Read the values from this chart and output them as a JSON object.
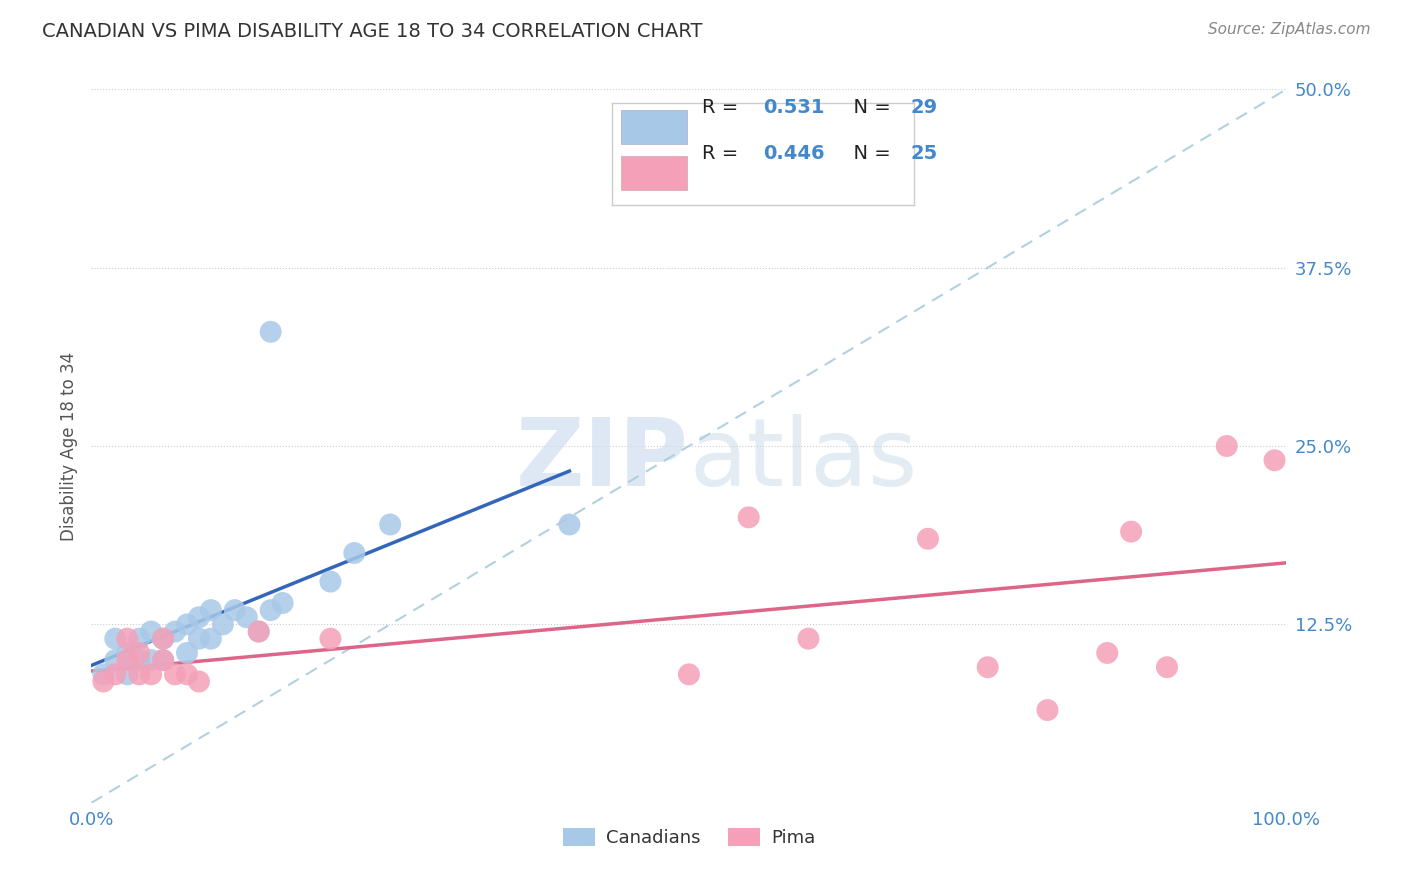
{
  "title": "CANADIAN VS PIMA DISABILITY AGE 18 TO 34 CORRELATION CHART",
  "source": "Source: ZipAtlas.com",
  "ylabel": "Disability Age 18 to 34",
  "xlim": [
    0.0,
    1.0
  ],
  "ylim": [
    0.0,
    0.5
  ],
  "yticks": [
    0.0,
    0.125,
    0.25,
    0.375,
    0.5
  ],
  "ytick_labels": [
    "",
    "12.5%",
    "25.0%",
    "37.5%",
    "50.0%"
  ],
  "xticks": [
    0.0,
    0.25,
    0.5,
    0.75,
    1.0
  ],
  "xtick_labels": [
    "0.0%",
    "",
    "",
    "",
    "100.0%"
  ],
  "canadian_color": "#a8c8e8",
  "pima_color": "#f4a0b8",
  "canadian_R": 0.531,
  "canadian_N": 29,
  "pima_R": 0.446,
  "pima_N": 25,
  "canadians_x": [
    0.01,
    0.02,
    0.02,
    0.03,
    0.03,
    0.04,
    0.04,
    0.05,
    0.05,
    0.06,
    0.06,
    0.07,
    0.08,
    0.08,
    0.09,
    0.09,
    0.1,
    0.1,
    0.11,
    0.12,
    0.13,
    0.14,
    0.15,
    0.16,
    0.2,
    0.22,
    0.25,
    0.4,
    0.15
  ],
  "canadians_y": [
    0.09,
    0.1,
    0.115,
    0.09,
    0.105,
    0.1,
    0.115,
    0.1,
    0.12,
    0.1,
    0.115,
    0.12,
    0.105,
    0.125,
    0.115,
    0.13,
    0.115,
    0.135,
    0.125,
    0.135,
    0.13,
    0.12,
    0.135,
    0.14,
    0.155,
    0.175,
    0.195,
    0.195,
    0.33
  ],
  "pima_x": [
    0.01,
    0.02,
    0.03,
    0.03,
    0.04,
    0.04,
    0.05,
    0.06,
    0.06,
    0.07,
    0.08,
    0.09,
    0.14,
    0.2,
    0.5,
    0.55,
    0.6,
    0.7,
    0.75,
    0.8,
    0.85,
    0.87,
    0.9,
    0.95,
    0.99
  ],
  "pima_y": [
    0.085,
    0.09,
    0.1,
    0.115,
    0.09,
    0.105,
    0.09,
    0.1,
    0.115,
    0.09,
    0.09,
    0.085,
    0.12,
    0.115,
    0.09,
    0.2,
    0.115,
    0.185,
    0.095,
    0.065,
    0.105,
    0.19,
    0.095,
    0.25,
    0.24
  ],
  "background_color": "#ffffff",
  "grid_color": "#cccccc",
  "title_color": "#333333",
  "axis_label_color": "#555555",
  "tick_color": "#4488cc",
  "legend_label_color": "#222222",
  "legend_value_color": "#4488cc",
  "blue_line_color": "#3366bb",
  "pink_line_color": "#dd6688",
  "diag_line_color": "#aaccdd",
  "watermark_color": "#d0dff0"
}
